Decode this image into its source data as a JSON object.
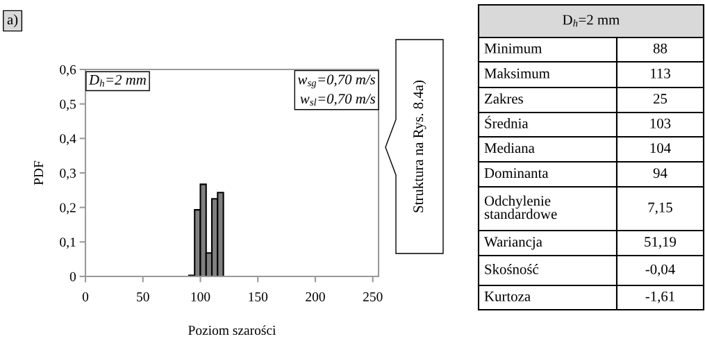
{
  "chart_data": {
    "type": "histogram",
    "bins": [
      90,
      95,
      100,
      105,
      110,
      115,
      120
    ],
    "values": [
      0.003,
      0.193,
      0.267,
      0.068,
      0.225,
      0.243
    ],
    "color": "#808080",
    "xlabel": "Poziom szarości",
    "ylabel": "PDF",
    "xlim": [
      0,
      255
    ],
    "xticks": [
      0,
      50,
      100,
      150,
      200,
      250
    ],
    "ylim": [
      0,
      0.6
    ],
    "yticks": [
      0,
      {
        "value": 0.1,
        "label": "0,1"
      },
      {
        "value": 0.2,
        "label": "0,2"
      },
      {
        "value": 0.3,
        "label": "0,3"
      },
      {
        "value": 0.4,
        "label": "0,4"
      },
      {
        "value": 0.5,
        "label": "0,5"
      },
      {
        "value": 0.6,
        "label": "0,6"
      }
    ],
    "grid": false,
    "annotations": [
      "a)",
      "D$_{h}$=2 mm",
      "w$_{sg}$=0,70 m/s\nw$_{sl}$=0,70 m/s",
      "Struktura na Rys. 8.4a)",
      "D$_{h}$=2 mm",
      "Minimum",
      "88",
      "Maksimum",
      "113",
      "Zakres",
      "25",
      "Średnia",
      "103",
      "Mediana",
      "104",
      "Dominanta",
      "94",
      "Odchylenie\nstandardowe",
      "7,15",
      "Wariancja",
      "51,19",
      "Skośność",
      "-0,04",
      "Kurtoza",
      "-1,61"
    ]
  }
}
